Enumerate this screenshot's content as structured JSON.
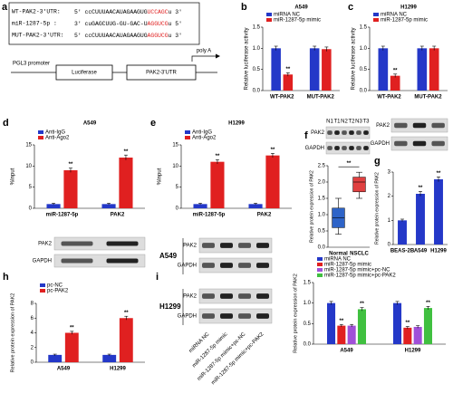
{
  "panel_a": {
    "panel": "a",
    "sequences": [
      {
        "name": "WT-PAK2-3'UTR:",
        "seq": "5' ccCUUUAACAUAGAAGUG",
        "highlight": "UCCAGC",
        "end": "u 3'"
      },
      {
        "name": "miR-1287-5p :",
        "seq": "3' cuGAGCUUG-GU-GAC-U",
        "highlight": "AGGUCG",
        "end": "u 5'"
      },
      {
        "name": "MUT-PAK2-3'UTR:",
        "seq": "5' ccCUUUAACAUAGAAGUG",
        "highlight": "AGGUCG",
        "end": "u 3'"
      }
    ],
    "construct": {
      "promoter": "PGL3 promoter",
      "gene": "Luciferase",
      "utr": "PAK2-3'UTR",
      "polya": "poly A"
    }
  },
  "blots": {
    "f": {
      "lanes": [
        "N1",
        "T1",
        "N2",
        "T2",
        "N3",
        "T3"
      ],
      "rows": [
        "PAK2",
        "GAPDH"
      ]
    },
    "g": {
      "rows": [
        "PAK2",
        "GAPDH"
      ]
    },
    "h": {
      "rows": [
        "PAK2",
        "GAPDH"
      ]
    },
    "i": {
      "groups": [
        "A549",
        "H1299"
      ],
      "rows": [
        "PAK2",
        "GAPDH"
      ],
      "lanes": [
        "miRNA NC",
        "miR-1287-5p mimic",
        "miR-1287-5p mimic+pc-NC",
        "miR-1287-5p mimic+pc-PAK2"
      ]
    }
  },
  "chart_data": [
    {
      "type": "bar",
      "panel": "b",
      "title": "A549",
      "ylabel": "Relative luciferase activity",
      "categories": [
        "WT-PAK2",
        "MUT-PAK2"
      ],
      "series": [
        {
          "name": "miRNA NC",
          "color": "#2438c8",
          "values": [
            1.0,
            1.0
          ],
          "errors": [
            0.05,
            0.05
          ]
        },
        {
          "name": "miR-1287-5p mimic",
          "color": "#e02020",
          "values": [
            0.38,
            0.98
          ],
          "errors": [
            0.04,
            0.05
          ],
          "labels": [
            "**",
            null
          ]
        }
      ],
      "ylim": [
        0,
        1.5
      ],
      "yticks": [
        {
          "value": 0,
          "label": "0.0"
        },
        0.5,
        {
          "value": 1,
          "label": "1.0"
        },
        1.5
      ]
    },
    {
      "type": "bar",
      "panel": "c",
      "title": "H1299",
      "ylabel": "Relative luciferase activity",
      "categories": [
        "WT-PAK2",
        "MUT-PAK2"
      ],
      "series": [
        {
          "name": "miRNA NC",
          "color": "#2438c8",
          "values": [
            1.0,
            1.0
          ],
          "errors": [
            0.05,
            0.05
          ]
        },
        {
          "name": "miR-1287-5p mimic",
          "color": "#e02020",
          "values": [
            0.35,
            1.0
          ],
          "errors": [
            0.04,
            0.05
          ],
          "labels": [
            "**",
            null
          ]
        }
      ],
      "ylim": [
        0,
        1.5
      ],
      "yticks": [
        {
          "value": 0,
          "label": "0.0"
        },
        0.5,
        {
          "value": 1,
          "label": "1.0"
        },
        1.5
      ]
    },
    {
      "type": "bar",
      "panel": "d",
      "title": "A549",
      "ylabel": "%Input",
      "categories": [
        "miR-1287-5p",
        "PAK2"
      ],
      "series": [
        {
          "name": "Anti-IgG",
          "color": "#2438c8",
          "values": [
            1,
            1
          ],
          "errors": [
            0.2,
            0.2
          ]
        },
        {
          "name": "Anti-Ago2",
          "color": "#e02020",
          "values": [
            9,
            12
          ],
          "errors": [
            0.5,
            0.6
          ],
          "labels": [
            "**",
            "**"
          ]
        }
      ],
      "ylim": [
        0,
        15
      ],
      "yticks": [
        0,
        5,
        10,
        15
      ]
    },
    {
      "type": "bar",
      "panel": "e",
      "title": "H1299",
      "ylabel": "%Input",
      "categories": [
        "miR-1287-5p",
        "PAK2"
      ],
      "series": [
        {
          "name": "Anti-IgG",
          "color": "#2438c8",
          "values": [
            1,
            1
          ],
          "errors": [
            0.2,
            0.2
          ]
        },
        {
          "name": "Anti-Ago2",
          "color": "#e02020",
          "values": [
            11,
            12.5
          ],
          "errors": [
            0.5,
            0.5
          ],
          "labels": [
            "**",
            "**"
          ]
        }
      ],
      "ylim": [
        0,
        15
      ],
      "yticks": [
        0,
        5,
        10,
        15
      ]
    },
    {
      "type": "box",
      "panel": "f",
      "ylabel": "Relative protein expression of PAK2",
      "categories": [
        "Normal",
        "NSCLC"
      ],
      "boxes": [
        {
          "color": "#2e64c8",
          "min": 0.4,
          "q1": 0.6,
          "median": 0.9,
          "q3": 1.2,
          "max": 1.5
        },
        {
          "color": "#e04040",
          "min": 1.5,
          "q1": 1.7,
          "median": 2.0,
          "q3": 2.15,
          "max": 2.3
        }
      ],
      "annotation": "**",
      "ylim": [
        0,
        2.5
      ],
      "yticks": [
        {
          "value": 0,
          "label": "0.0"
        },
        0.5,
        {
          "value": 1,
          "label": "1.0"
        },
        1.5,
        {
          "value": 2,
          "label": "2.0"
        },
        2.5
      ]
    },
    {
      "type": "bar",
      "panel": "g",
      "ylabel": "Relative protein expression of PAK2",
      "categories": [
        "BEAS-2B",
        "A549",
        "H1299"
      ],
      "series": [
        {
          "color": "#2438c8",
          "values": [
            1.0,
            2.1,
            2.7
          ],
          "errors": [
            0.05,
            0.1,
            0.1
          ],
          "labels": [
            null,
            "**",
            "**"
          ]
        }
      ],
      "ylim": [
        0,
        3
      ],
      "yticks": [
        0,
        1,
        2,
        3
      ]
    },
    {
      "type": "bar",
      "panel": "h",
      "ylabel": "Relative protein expression of PAK2",
      "categories": [
        "A549",
        "H1299"
      ],
      "series": [
        {
          "name": "pc-NC",
          "color": "#2438c8",
          "values": [
            1,
            1
          ],
          "errors": [
            0.1,
            0.1
          ]
        },
        {
          "name": "pc-PAK2",
          "color": "#e02020",
          "values": [
            4,
            6
          ],
          "errors": [
            0.2,
            0.25
          ],
          "labels": [
            "**",
            "**"
          ]
        }
      ],
      "ylim": [
        0,
        8
      ],
      "yticks": [
        0,
        2,
        4,
        6,
        8
      ]
    },
    {
      "type": "bar",
      "panel": "i",
      "ylabel": "Relative protein expression of PAK2",
      "categories": [
        "A549",
        "H1299"
      ],
      "series": [
        {
          "name": "miRNA NC",
          "color": "#2438c8",
          "values": [
            1.0,
            1.0
          ],
          "errors": [
            0.04,
            0.04
          ]
        },
        {
          "name": "miR-1287-5p mimic",
          "color": "#e02020",
          "values": [
            0.45,
            0.4
          ],
          "errors": [
            0.03,
            0.03
          ],
          "labels": [
            "**",
            "**"
          ]
        },
        {
          "name": "miR-1287-5p mimic+pc-NC",
          "color": "#a050d8",
          "values": [
            0.45,
            0.42
          ],
          "errors": [
            0.03,
            0.03
          ]
        },
        {
          "name": "miR-1287-5p mimic+pc-PAK2",
          "color": "#40c040",
          "values": [
            0.85,
            0.88
          ],
          "errors": [
            0.04,
            0.04
          ],
          "labels": [
            "**",
            "**"
          ]
        }
      ],
      "ylim": [
        0,
        1.5
      ],
      "yticks": [
        {
          "value": 0,
          "label": "0.0"
        },
        0.5,
        {
          "value": 1,
          "label": "1.0"
        },
        1.5
      ]
    }
  ]
}
